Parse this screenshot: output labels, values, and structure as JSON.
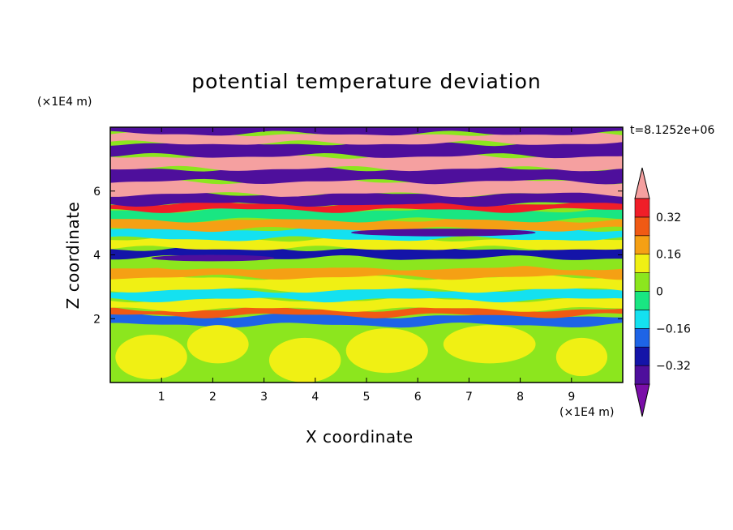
{
  "chart_data": {
    "type": "heatmap",
    "title": "potential temperature deviation",
    "xlabel": "X coordinate",
    "ylabel": "Z coordinate",
    "x_unit": "(×1E4 m)",
    "z_unit": "(×1E4 m)",
    "time_label": "t=8.1252e+06",
    "xlim": [
      0,
      10
    ],
    "ylim": [
      0,
      8
    ],
    "x_ticks": [
      "1",
      "2",
      "3",
      "4",
      "5",
      "6",
      "7",
      "8",
      "9"
    ],
    "y_ticks": [
      "2",
      "4",
      "6"
    ],
    "colorbar": {
      "levels": [
        -0.4,
        -0.32,
        -0.24,
        -0.16,
        -0.08,
        0,
        0.08,
        0.16,
        0.24,
        0.32,
        0.4
      ],
      "tick_labels": [
        "0.32",
        "0.16",
        "0",
        "−0.16",
        "−0.32"
      ],
      "tick_values": [
        0.32,
        0.16,
        0,
        -0.16,
        -0.32
      ],
      "colors": [
        "#7a0ea8",
        "#4e0f9c",
        "#1414a8",
        "#1e64e6",
        "#14e1f0",
        "#19e682",
        "#8ce61e",
        "#f0f014",
        "#f5a014",
        "#f05a14",
        "#f01e28",
        "#f5a0a0"
      ]
    },
    "layers": [
      {
        "z0": 0.0,
        "z1": 1.8,
        "level": 0
      },
      {
        "z0": 1.8,
        "z1": 2.1,
        "level": -0.24
      },
      {
        "z0": 2.1,
        "z1": 2.3,
        "level": 0.24
      },
      {
        "z0": 2.3,
        "z1": 2.6,
        "level": 0.08
      },
      {
        "z0": 2.6,
        "z1": 2.9,
        "level": -0.16
      },
      {
        "z0": 2.9,
        "z1": 3.3,
        "level": 0.08
      },
      {
        "z0": 3.3,
        "z1": 3.6,
        "level": 0.16
      },
      {
        "z0": 3.6,
        "z1": 3.9,
        "level": 0
      },
      {
        "z0": 3.9,
        "z1": 4.2,
        "level": -0.32
      },
      {
        "z0": 4.2,
        "z1": 4.5,
        "level": 0.08
      },
      {
        "z0": 4.5,
        "z1": 4.8,
        "level": -0.16
      },
      {
        "z0": 4.8,
        "z1": 5.1,
        "level": 0.16
      },
      {
        "z0": 5.1,
        "z1": 5.4,
        "level": -0.08
      },
      {
        "z0": 5.4,
        "z1": 5.6,
        "level": 0.32
      },
      {
        "z0": 5.6,
        "z1": 5.9,
        "level": -0.4
      },
      {
        "z0": 5.9,
        "z1": 6.3,
        "level": 0.4
      },
      {
        "z0": 6.3,
        "z1": 6.7,
        "level": -0.4
      },
      {
        "z0": 6.7,
        "z1": 7.1,
        "level": 0.4
      },
      {
        "z0": 7.1,
        "z1": 7.5,
        "level": -0.4
      },
      {
        "z0": 7.5,
        "z1": 7.8,
        "level": 0.4
      },
      {
        "z0": 7.8,
        "z1": 8.0,
        "level": -0.4
      }
    ],
    "blobs": [
      {
        "x": 0.8,
        "z": 0.8,
        "rx": 0.7,
        "rz": 0.7,
        "level": 0.08
      },
      {
        "x": 2.1,
        "z": 1.2,
        "rx": 0.6,
        "rz": 0.6,
        "level": 0.08
      },
      {
        "x": 3.8,
        "z": 0.7,
        "rx": 0.7,
        "rz": 0.7,
        "level": 0.08
      },
      {
        "x": 5.4,
        "z": 1.0,
        "rx": 0.8,
        "rz": 0.7,
        "level": 0.08
      },
      {
        "x": 7.4,
        "z": 1.2,
        "rx": 0.9,
        "rz": 0.6,
        "level": 0.08
      },
      {
        "x": 9.2,
        "z": 0.8,
        "rx": 0.5,
        "rz": 0.6,
        "level": 0.08
      },
      {
        "x": 6.5,
        "z": 4.7,
        "rx": 1.8,
        "rz": 0.12,
        "level": -0.4
      },
      {
        "x": 4.5,
        "z": 5.7,
        "rx": 2.2,
        "rz": 0.14,
        "level": -0.4
      },
      {
        "x": 2.0,
        "z": 3.9,
        "rx": 1.2,
        "rz": 0.1,
        "level": -0.4
      }
    ]
  }
}
